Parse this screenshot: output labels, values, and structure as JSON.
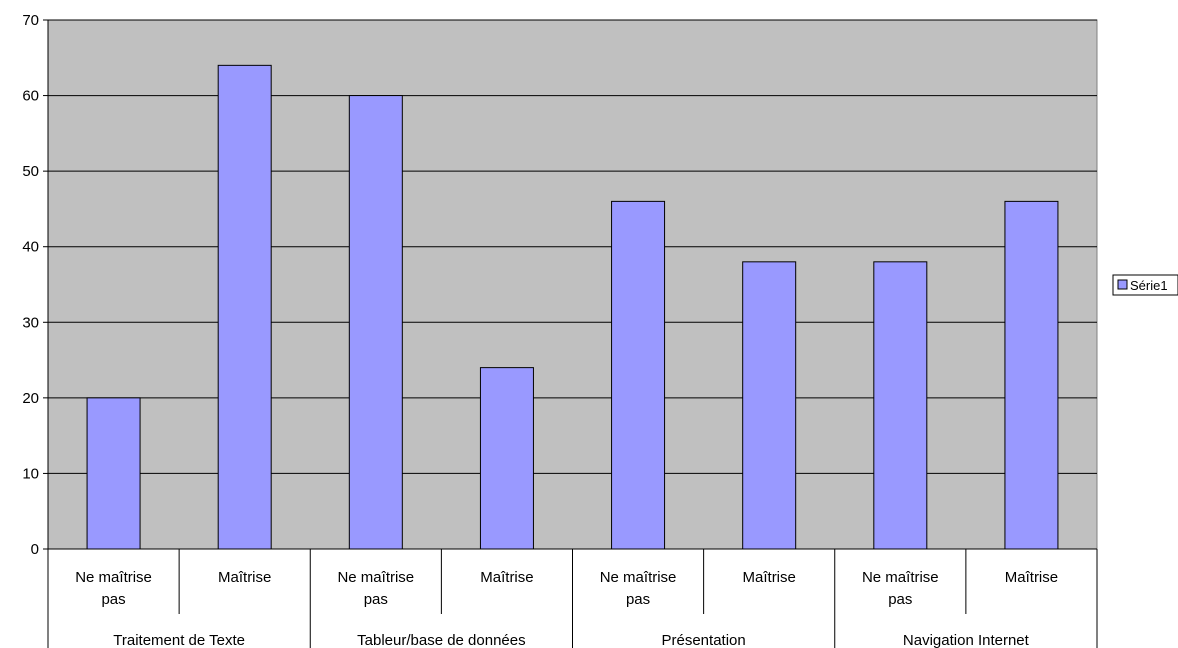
{
  "chart_data": {
    "type": "bar",
    "title": "",
    "xlabel": "",
    "ylabel": "",
    "ylim": [
      0,
      70
    ],
    "yticks": [
      0,
      10,
      20,
      30,
      40,
      50,
      60,
      70
    ],
    "grid": true,
    "legend_position": "right",
    "groups": [
      {
        "label": "Traitement de Texte",
        "categories": [
          [
            "Ne maîtrise",
            "pas"
          ],
          [
            "Maîtrise"
          ]
        ]
      },
      {
        "label": "Tableur/base de données",
        "categories": [
          [
            "Ne maîtrise",
            "pas"
          ],
          [
            "Maîtrise"
          ]
        ]
      },
      {
        "label": "Présentation",
        "categories": [
          [
            "Ne maîtrise",
            "pas"
          ],
          [
            "Maîtrise"
          ]
        ]
      },
      {
        "label": "Navigation Internet",
        "categories": [
          [
            "Ne maîtrise",
            "pas"
          ],
          [
            "Maîtrise"
          ]
        ]
      }
    ],
    "series": [
      {
        "name": "Série1",
        "values": [
          20,
          64,
          60,
          24,
          46,
          38,
          38,
          46
        ]
      }
    ],
    "colors": {
      "plot_background": "#c0c0c0",
      "bar_fill": "#9999ff",
      "bar_stroke": "#000000",
      "gridline": "#000000"
    }
  }
}
